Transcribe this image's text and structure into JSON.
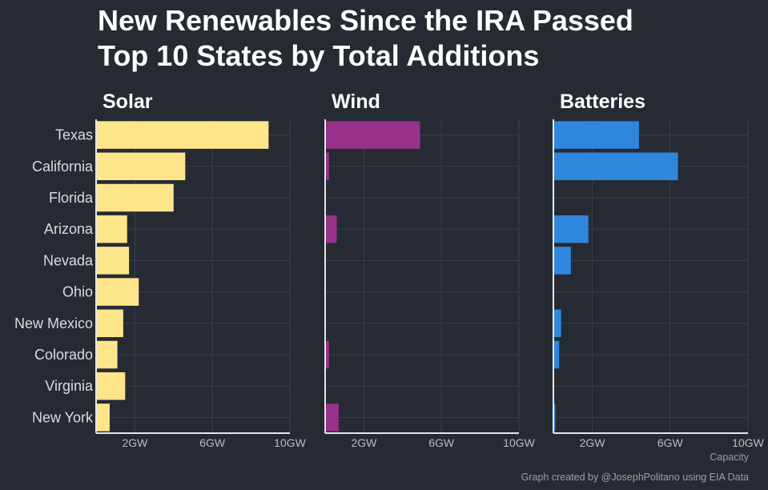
{
  "title_line1": "New Renewables Since the IRA Passed",
  "title_line2": "Top 10 States by Total Additions",
  "caption": "Graph created by @JosephPolitano using EIA Data",
  "colors": {
    "background": "#252a33",
    "grid": "#3a404b",
    "axis": "#e6e6e6",
    "tick_text": "#b9bec6",
    "category_text": "#d9dde3",
    "facet_text": "#ffffff"
  },
  "chart_data": {
    "type": "bar",
    "orientation": "horizontal",
    "categories": [
      "Texas",
      "California",
      "Florida",
      "Arizona",
      "Nevada",
      "Ohio",
      "New Mexico",
      "Colorado",
      "Virginia",
      "New York"
    ],
    "xlabel": "Capacity",
    "ylabel": "",
    "xlim": [
      0,
      10
    ],
    "xticks": [
      2,
      6,
      10
    ],
    "xtick_labels": [
      "2GW",
      "6GW",
      "10GW"
    ],
    "grid": true,
    "series": [
      {
        "name": "Solar",
        "color": "#ffe58a",
        "values": [
          8.9,
          4.6,
          4.0,
          1.6,
          1.7,
          2.2,
          1.4,
          1.1,
          1.5,
          0.7
        ]
      },
      {
        "name": "Wind",
        "color": "#973189",
        "values": [
          4.9,
          0.2,
          0.0,
          0.6,
          0.0,
          0.0,
          0.0,
          0.2,
          0.0,
          0.7
        ]
      },
      {
        "name": "Batteries",
        "color": "#2f86dd",
        "values": [
          4.4,
          6.4,
          0.05,
          1.8,
          0.9,
          0.0,
          0.4,
          0.3,
          0.0,
          0.1
        ]
      }
    ]
  }
}
